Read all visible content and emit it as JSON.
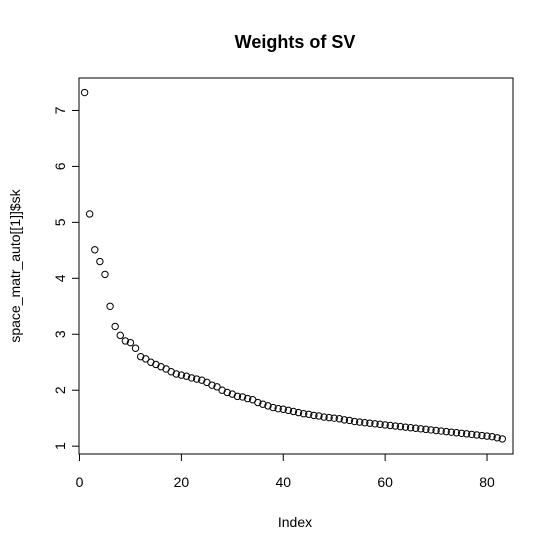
{
  "chart_data": {
    "type": "scatter",
    "title": "Weights of SV",
    "xlabel": "Index",
    "ylabel": "space_matr_auto[[1]]$sk",
    "xlim": [
      -0.1,
      85.1
    ],
    "ylim": [
      0.86,
      7.58
    ],
    "x_ticks": [
      0,
      20,
      40,
      60,
      80
    ],
    "y_ticks": [
      1,
      2,
      3,
      4,
      5,
      6,
      7
    ],
    "grid": false,
    "legend": "none",
    "marker": "open-circle",
    "colors": {
      "points": "#000000",
      "axes": "#000000",
      "background": "#ffffff"
    },
    "x": [
      1,
      2,
      3,
      4,
      5,
      6,
      7,
      8,
      9,
      10,
      11,
      12,
      13,
      14,
      15,
      16,
      17,
      18,
      19,
      20,
      21,
      22,
      23,
      24,
      25,
      26,
      27,
      28,
      29,
      30,
      31,
      32,
      33,
      34,
      35,
      36,
      37,
      38,
      39,
      40,
      41,
      42,
      43,
      44,
      45,
      46,
      47,
      48,
      49,
      50,
      51,
      52,
      53,
      54,
      55,
      56,
      57,
      58,
      59,
      60,
      61,
      62,
      63,
      64,
      65,
      66,
      67,
      68,
      69,
      70,
      71,
      72,
      73,
      74,
      75,
      76,
      77,
      78,
      79,
      80,
      81,
      82,
      83
    ],
    "values": [
      7.32,
      5.15,
      4.51,
      4.3,
      4.07,
      3.5,
      3.14,
      2.98,
      2.88,
      2.85,
      2.75,
      2.6,
      2.56,
      2.5,
      2.46,
      2.42,
      2.38,
      2.33,
      2.29,
      2.27,
      2.25,
      2.22,
      2.2,
      2.18,
      2.14,
      2.09,
      2.06,
      2.0,
      1.96,
      1.93,
      1.89,
      1.88,
      1.85,
      1.83,
      1.78,
      1.75,
      1.72,
      1.69,
      1.67,
      1.66,
      1.64,
      1.62,
      1.6,
      1.58,
      1.57,
      1.55,
      1.54,
      1.52,
      1.51,
      1.5,
      1.49,
      1.47,
      1.46,
      1.44,
      1.43,
      1.42,
      1.41,
      1.4,
      1.39,
      1.38,
      1.37,
      1.36,
      1.35,
      1.34,
      1.33,
      1.32,
      1.31,
      1.3,
      1.29,
      1.28,
      1.27,
      1.26,
      1.25,
      1.24,
      1.23,
      1.22,
      1.21,
      1.2,
      1.19,
      1.18,
      1.17,
      1.15,
      1.13
    ]
  }
}
